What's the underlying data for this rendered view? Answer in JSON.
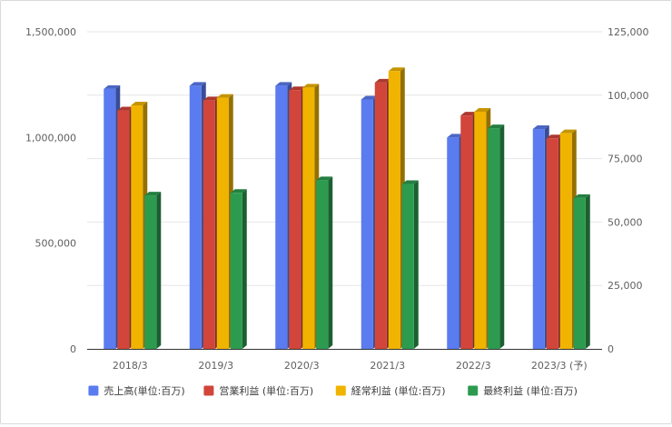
{
  "chart_data": {
    "type": "bar",
    "categories": [
      "2018/3",
      "2019/3",
      "2020/3",
      "2021/3",
      "2022/3",
      "2023/3 (予)"
    ],
    "series": [
      {
        "name": "売上高(単位:百万)",
        "axis": "left",
        "color": "#5b7cf0",
        "values": [
          1230000,
          1245000,
          1245000,
          1180000,
          1000000,
          1040000
        ]
      },
      {
        "name": "営業利益 (単位:百万)",
        "axis": "right",
        "color": "#d2453a",
        "values": [
          94000,
          98000,
          102000,
          105000,
          92000,
          83000
        ]
      },
      {
        "name": "経常利益 (単位:百万)",
        "axis": "right",
        "color": "#f0b400",
        "values": [
          96000,
          99000,
          103000,
          109500,
          93500,
          85000
        ]
      },
      {
        "name": "最終利益 (単位:百万)",
        "axis": "right",
        "color": "#2c9b4f",
        "values": [
          60500,
          61500,
          66500,
          65000,
          87000,
          59500
        ]
      }
    ],
    "y_left": {
      "ylim": [
        0,
        1500000
      ],
      "ticks": [
        0,
        500000,
        1000000,
        1500000
      ],
      "tick_labels": [
        "0",
        "500,000",
        "1,000,000",
        "1,500,000"
      ]
    },
    "y_right": {
      "ylim": [
        0,
        125000
      ],
      "ticks": [
        0,
        25000,
        50000,
        75000,
        100000,
        125000
      ],
      "tick_labels": [
        "0",
        "25,000",
        "50,000",
        "75,000",
        "100,000",
        "125,000"
      ]
    },
    "title": "",
    "xlabel": "",
    "ylabel": "",
    "grid": true,
    "legend_position": "bottom"
  }
}
